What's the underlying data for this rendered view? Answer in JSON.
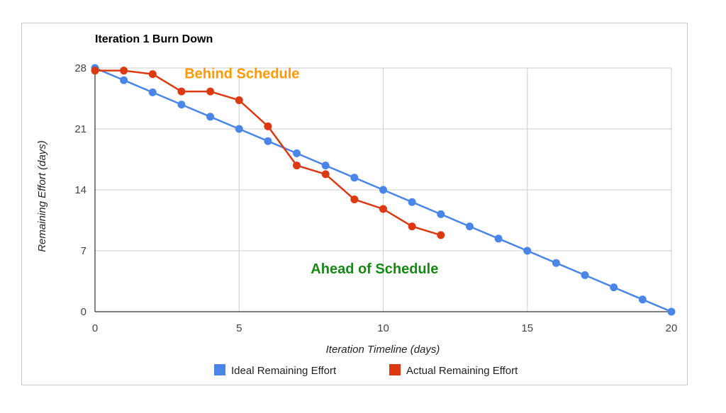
{
  "chart_data": {
    "type": "line",
    "title": "Iteration 1 Burn Down",
    "xlabel": "Iteration Timeline (days)",
    "ylabel": "Remaining Effort (days)",
    "xlim": [
      0,
      20
    ],
    "ylim": [
      0,
      28
    ],
    "x_ticks": [
      0,
      5,
      10,
      15,
      20
    ],
    "y_ticks": [
      0,
      7,
      14,
      21,
      28
    ],
    "grid": true,
    "legend_position": "bottom",
    "series": [
      {
        "name": "Ideal Remaining Effort",
        "color": "#4a86e8",
        "x": [
          0,
          1,
          2,
          3,
          4,
          5,
          6,
          7,
          8,
          9,
          10,
          11,
          12,
          13,
          14,
          15,
          16,
          17,
          18,
          19,
          20
        ],
        "values": [
          28,
          26.6,
          25.2,
          23.8,
          22.4,
          21,
          19.6,
          18.2,
          16.8,
          15.4,
          14,
          12.6,
          11.2,
          9.8,
          8.4,
          7,
          5.6,
          4.2,
          2.8,
          1.4,
          0
        ]
      },
      {
        "name": "Actual Remaining Effort",
        "color": "#dc3912",
        "x": [
          0,
          1,
          2,
          3,
          4,
          5,
          6,
          7,
          8,
          9,
          10,
          11,
          12
        ],
        "values": [
          27.7,
          27.7,
          27.3,
          25.3,
          25.3,
          24.3,
          21.3,
          16.8,
          15.8,
          12.9,
          11.8,
          9.8,
          8.8
        ]
      }
    ],
    "annotations": [
      {
        "text": "Behind Schedule",
        "color": "#ff9900",
        "x": 5.1,
        "y": 26.8
      },
      {
        "text": "Ahead of Schedule",
        "color": "#138a13",
        "x": 9.7,
        "y": 4.4
      }
    ]
  }
}
